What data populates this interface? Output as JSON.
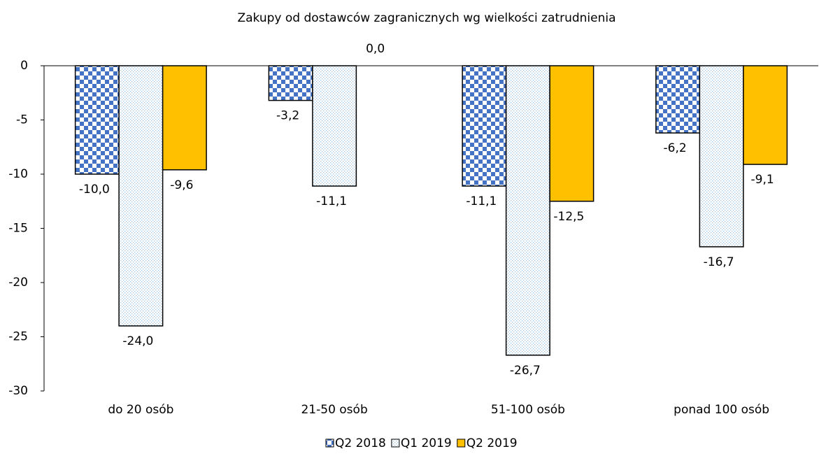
{
  "chart_data": {
    "type": "bar",
    "title": "Zakupy od dostawców zagranicznych wg wielkości zatrudnienia",
    "categories": [
      "do 20 osób",
      "21-50 osób",
      "51-100 osób",
      "ponad 100 osób"
    ],
    "series": [
      {
        "name": "Q2 2018",
        "color": "#4472c4",
        "pattern": "checker",
        "values": [
          -10.0,
          -3.2,
          -11.1,
          -6.2
        ],
        "value_labels": [
          "-10,0",
          "-3,2",
          "-11,1",
          "-6,2"
        ]
      },
      {
        "name": "Q1 2019",
        "color": "#9dc3e6",
        "pattern": "dots",
        "values": [
          -24.0,
          -11.1,
          -26.7,
          -16.7
        ],
        "value_labels": [
          "-24,0",
          "-11,1",
          "-26,7",
          "-16,7"
        ]
      },
      {
        "name": "Q2 2019",
        "color": "#ffc000",
        "pattern": "solid",
        "values": [
          -9.6,
          0.0,
          -12.5,
          -9.1
        ],
        "value_labels": [
          "-9,6",
          "0,0",
          "-12,5",
          "-9,1"
        ]
      }
    ],
    "ylim": [
      -30,
      0
    ],
    "yticks": [
      0,
      -5,
      -10,
      -15,
      -20,
      -25,
      -30
    ],
    "grid": false,
    "legend": "bottom"
  }
}
